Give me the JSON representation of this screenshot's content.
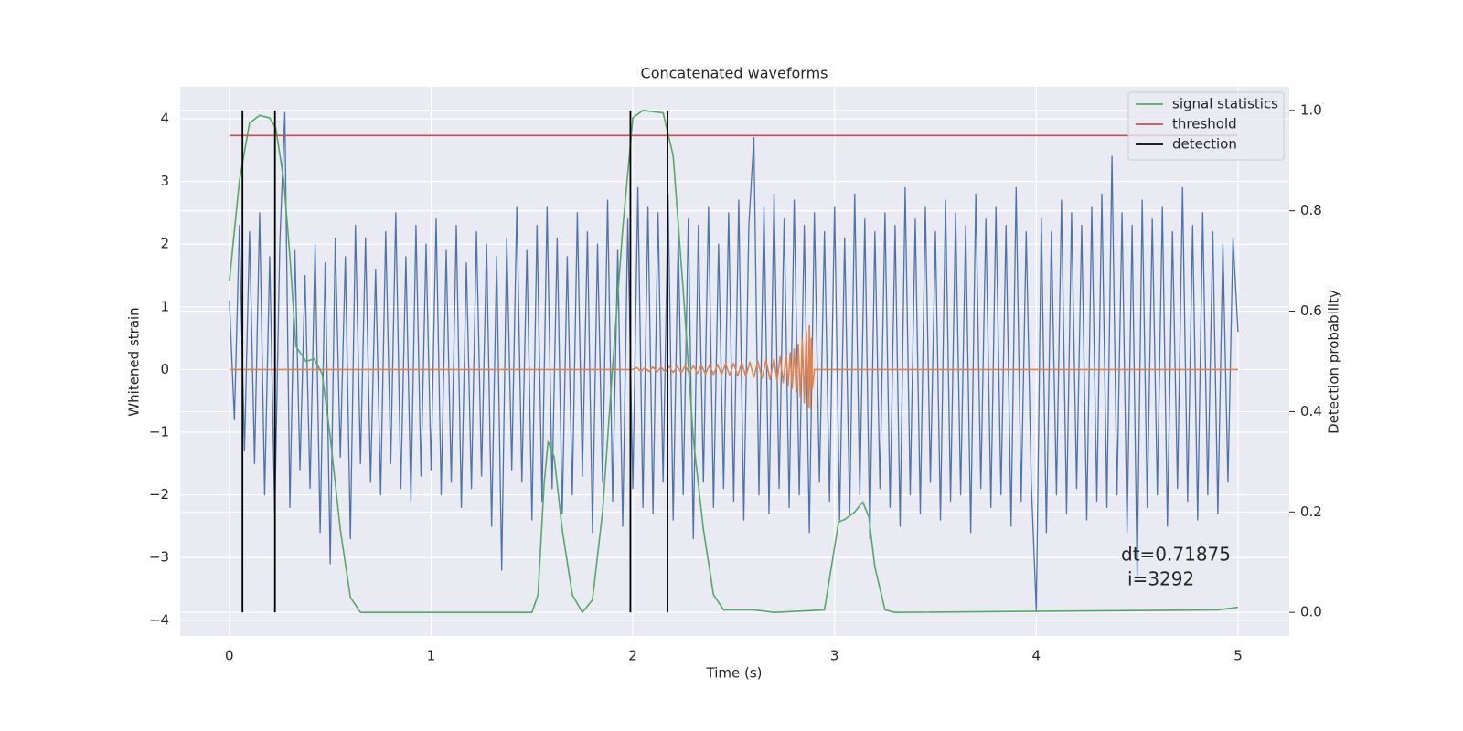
{
  "chart_data": {
    "type": "line",
    "title": "Concatenated waveforms",
    "xlabel": "Time (s)",
    "ylabel": "Whitened strain",
    "y2label": "Detection probability",
    "xlim": [
      -0.244,
      5.254
    ],
    "xticks": [
      0,
      1,
      2,
      3,
      4,
      5
    ],
    "ylim": [
      -4.25,
      4.51
    ],
    "yticks": [
      {
        "value": -4,
        "label": "−4"
      },
      {
        "value": -3,
        "label": "−3"
      },
      {
        "value": -2,
        "label": "−2"
      },
      {
        "value": -1,
        "label": "−1"
      },
      0,
      1,
      2,
      3,
      4
    ],
    "y2lim": [
      -0.047,
      1.047
    ],
    "y2ticks": [
      {
        "value": 0,
        "label": "0.0"
      },
      {
        "value": 0.2,
        "label": "0.2"
      },
      {
        "value": 0.4,
        "label": "0.4"
      },
      {
        "value": 0.6,
        "label": "0.6"
      },
      {
        "value": 0.8,
        "label": "0.8"
      },
      {
        "value": 1,
        "label": "1.0"
      }
    ],
    "grid": true,
    "legend": "upper right",
    "series": [
      {
        "color": "#4c72b0",
        "x": [
          0,
          0.025,
          0.05,
          0.075,
          0.1,
          0.125,
          0.15,
          0.175,
          0.2,
          0.225,
          0.25,
          0.275,
          0.3,
          0.325,
          0.35,
          0.375,
          0.4,
          0.425,
          0.45,
          0.475,
          0.5,
          0.525,
          0.55,
          0.575,
          0.6,
          0.625,
          0.65,
          0.675,
          0.7,
          0.725,
          0.75,
          0.775,
          0.8,
          0.825,
          0.85,
          0.875,
          0.9,
          0.925,
          0.95,
          0.975,
          1,
          1.025,
          1.05,
          1.075,
          1.1,
          1.125,
          1.15,
          1.175,
          1.2,
          1.225,
          1.25,
          1.275,
          1.3,
          1.325,
          1.35,
          1.375,
          1.4,
          1.425,
          1.45,
          1.475,
          1.5,
          1.525,
          1.55,
          1.575,
          1.6,
          1.625,
          1.65,
          1.675,
          1.7,
          1.725,
          1.75,
          1.775,
          1.8,
          1.825,
          1.85,
          1.875,
          1.9,
          1.925,
          1.95,
          1.975,
          2,
          2.025,
          2.05,
          2.075,
          2.1,
          2.125,
          2.15,
          2.175,
          2.2,
          2.225,
          2.25,
          2.275,
          2.3,
          2.325,
          2.35,
          2.375,
          2.4,
          2.425,
          2.45,
          2.475,
          2.5,
          2.525,
          2.55,
          2.575,
          2.6,
          2.625,
          2.65,
          2.675,
          2.7,
          2.725,
          2.75,
          2.775,
          2.8,
          2.825,
          2.85,
          2.875,
          2.9,
          2.925,
          2.95,
          2.975,
          3,
          3.025,
          3.05,
          3.075,
          3.1,
          3.125,
          3.15,
          3.175,
          3.2,
          3.225,
          3.25,
          3.275,
          3.3,
          3.325,
          3.35,
          3.375,
          3.4,
          3.425,
          3.45,
          3.475,
          3.5,
          3.525,
          3.55,
          3.575,
          3.6,
          3.625,
          3.65,
          3.675,
          3.7,
          3.725,
          3.75,
          3.775,
          3.8,
          3.825,
          3.85,
          3.875,
          3.9,
          3.925,
          3.95,
          3.975,
          4,
          4.025,
          4.05,
          4.075,
          4.1,
          4.125,
          4.15,
          4.175,
          4.2,
          4.225,
          4.25,
          4.275,
          4.3,
          4.325,
          4.35,
          4.375,
          4.4,
          4.425,
          4.45,
          4.475,
          4.5,
          4.525,
          4.55,
          4.575,
          4.6,
          4.625,
          4.65,
          4.675,
          4.7,
          4.725,
          4.75,
          4.775,
          4.8,
          4.825,
          4.85,
          4.875,
          4.9,
          4.925,
          4.95,
          4.975,
          5
        ],
        "values": [
          1.1,
          -0.8,
          2.3,
          -1.3,
          2.2,
          -1.5,
          2.5,
          -2.0,
          1.8,
          -2.3,
          2.0,
          4.1,
          -2.2,
          1.9,
          -1.6,
          1.5,
          -1.9,
          2.0,
          -2.6,
          1.7,
          -3.1,
          2.1,
          -1.4,
          1.8,
          -2.7,
          2.3,
          -1.5,
          2.1,
          -1.8,
          1.6,
          -2.0,
          2.2,
          -1.5,
          2.5,
          -1.9,
          1.8,
          -2.1,
          2.3,
          -1.7,
          2.0,
          -1.6,
          2.4,
          -2.0,
          1.9,
          -1.8,
          2.3,
          -2.2,
          1.7,
          -1.9,
          2.2,
          -1.7,
          2.0,
          -2.5,
          1.8,
          -3.2,
          2.1,
          -1.6,
          2.6,
          -1.8,
          1.9,
          -2.4,
          2.3,
          -2.1,
          2.6,
          -1.9,
          2.1,
          -2.3,
          1.8,
          -2.0,
          2.5,
          -1.7,
          2.2,
          -2.6,
          2.0,
          -1.8,
          2.7,
          -2.1,
          1.9,
          -2.5,
          2.4,
          -1.9,
          2.9,
          -2.2,
          2.6,
          -2.3,
          2.5,
          -1.8,
          2.8,
          -2.4,
          2.1,
          -2.0,
          2.4,
          -2.7,
          2.3,
          -1.8,
          2.6,
          -2.2,
          2.0,
          -1.9,
          2.5,
          -2.1,
          2.7,
          -2.4,
          2.3,
          3.7,
          -2.0,
          2.6,
          -2.3,
          2.8,
          -1.9,
          2.4,
          -2.2,
          2.7,
          -2.0,
          2.3,
          -2.6,
          2.5,
          -1.8,
          2.2,
          -2.1,
          2.6,
          -2.4,
          2.1,
          -2.3,
          2.8,
          -2.0,
          2.4,
          -2.7,
          2.2,
          -1.9,
          2.5,
          -2.2,
          2.3,
          -2.5,
          2.9,
          -2.0,
          2.4,
          -2.3,
          2.6,
          -1.8,
          2.2,
          -2.4,
          2.7,
          -2.1,
          2.5,
          -2.0,
          2.3,
          -2.6,
          2.8,
          -1.9,
          2.4,
          -2.2,
          2.6,
          -2.0,
          2.3,
          -2.5,
          2.9,
          -2.1,
          2.2,
          -1.8,
          -3.85,
          2.4,
          -2.6,
          2.2,
          -2.0,
          2.7,
          -2.3,
          2.5,
          -1.9,
          2.3,
          -2.4,
          2.6,
          -2.1,
          2.8,
          -2.2,
          3.4,
          -2.0,
          2.5,
          -2.6,
          2.3,
          -3.3,
          2.7,
          -2.2,
          2.4,
          -2.0,
          2.6,
          -2.5,
          2.2,
          -1.9,
          2.9,
          -2.1,
          2.3,
          -2.4,
          2.5,
          -2.0,
          2.2,
          -2.3,
          2.0,
          -1.8,
          2.1,
          0.6
        ]
      },
      {
        "color": "#dd8452",
        "x": [
          0,
          2.0,
          2.02,
          2.04,
          2.06,
          2.08,
          2.1,
          2.12,
          2.14,
          2.16,
          2.18,
          2.2,
          2.22,
          2.24,
          2.26,
          2.28,
          2.3,
          2.32,
          2.34,
          2.36,
          2.38,
          2.4,
          2.42,
          2.44,
          2.46,
          2.48,
          2.5,
          2.52,
          2.54,
          2.56,
          2.58,
          2.6,
          2.62,
          2.64,
          2.66,
          2.68,
          2.7,
          2.715,
          2.73,
          2.745,
          2.76,
          2.77,
          2.78,
          2.79,
          2.8,
          2.81,
          2.82,
          2.83,
          2.84,
          2.85,
          2.86,
          2.87,
          2.875,
          2.88,
          2.885,
          2.89,
          2.9,
          5
        ],
        "values": [
          0,
          0,
          0.03,
          -0.03,
          0.03,
          -0.03,
          0.04,
          -0.04,
          0.04,
          -0.04,
          0.05,
          -0.05,
          0.05,
          -0.05,
          0.06,
          -0.06,
          0.06,
          -0.06,
          0.07,
          -0.07,
          0.07,
          -0.08,
          0.08,
          -0.08,
          0.09,
          -0.09,
          0.1,
          -0.1,
          0.11,
          -0.11,
          0.12,
          -0.12,
          0.13,
          -0.14,
          0.15,
          -0.16,
          0.17,
          -0.18,
          0.2,
          -0.21,
          0.23,
          -0.25,
          0.27,
          -0.3,
          0.33,
          -0.36,
          0.4,
          -0.44,
          0.48,
          -0.53,
          0.6,
          -0.6,
          0.7,
          -0.62,
          0.5,
          -0.3,
          0,
          0
        ]
      },
      {
        "name": "signal statistics",
        "color": "#55a868",
        "axis": "y2",
        "x": [
          0,
          0.05,
          0.1,
          0.15,
          0.2,
          0.23,
          0.27,
          0.3,
          0.33,
          0.38,
          0.42,
          0.46,
          0.5,
          0.55,
          0.6,
          0.65,
          1.5,
          1.53,
          1.56,
          1.58,
          1.61,
          1.65,
          1.7,
          1.75,
          1.8,
          1.85,
          1.9,
          1.95,
          2.0,
          2.05,
          2.15,
          2.2,
          2.25,
          2.3,
          2.35,
          2.4,
          2.45,
          2.6,
          2.7,
          2.95,
          3.0,
          3.02,
          3.05,
          3.1,
          3.14,
          3.17,
          3.2,
          3.25,
          3.3,
          4.9,
          5.0
        ],
        "values": [
          0.66,
          0.86,
          0.975,
          0.99,
          0.985,
          0.965,
          0.86,
          0.71,
          0.53,
          0.5,
          0.505,
          0.475,
          0.35,
          0.165,
          0.03,
          0,
          0,
          0.035,
          0.255,
          0.34,
          0.31,
          0.165,
          0.035,
          0,
          0.025,
          0.2,
          0.49,
          0.765,
          0.985,
          1,
          0.995,
          0.91,
          0.64,
          0.345,
          0.165,
          0.035,
          0.005,
          0.005,
          0,
          0.005,
          0.13,
          0.18,
          0.185,
          0.2,
          0.22,
          0.19,
          0.09,
          0.005,
          0,
          0.005,
          0.01
        ]
      },
      {
        "name": "threshold",
        "color": "#c44e52",
        "axis": "y2",
        "x": [
          0,
          5
        ],
        "values": [
          0.95,
          0.95
        ]
      }
    ],
    "vlines": {
      "name": "detection",
      "color": "#000000",
      "axis": "y2",
      "x": [
        0.065,
        0.226,
        1.988,
        2.172
      ],
      "ymin": 0,
      "ymax": 1
    },
    "annotations": [
      "dt=0.71875",
      "i=3292"
    ]
  }
}
